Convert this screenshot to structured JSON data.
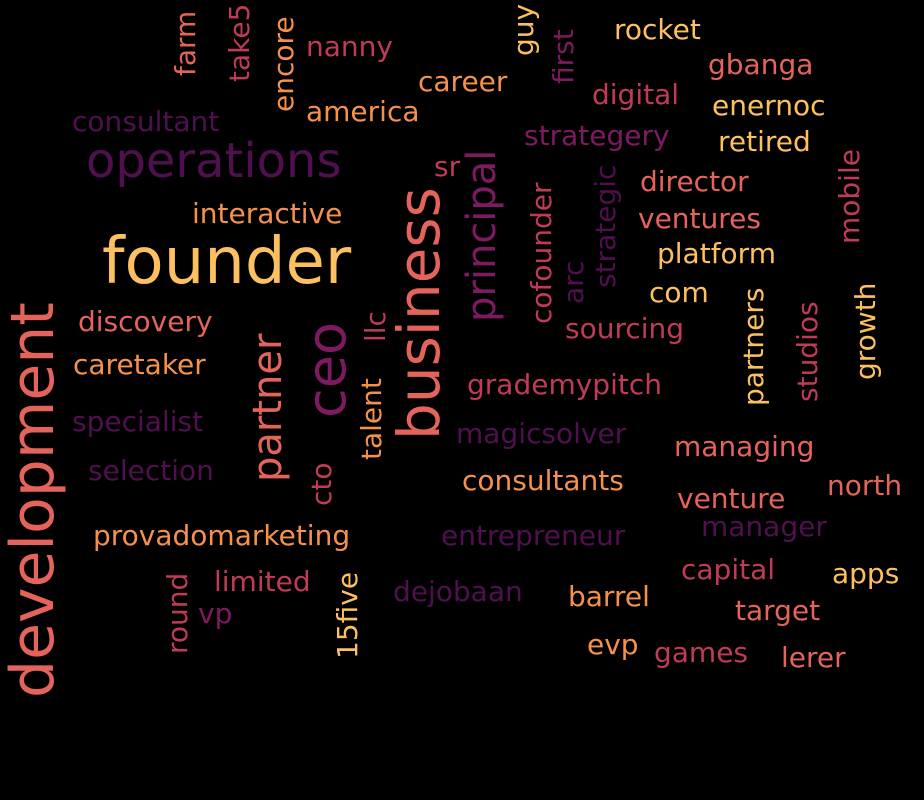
{
  "palette": {
    "yellow": "#fcc060",
    "orange": "#f6914c",
    "salmon": "#e4645c",
    "rose": "#c03b55",
    "purple": "#7d1a62",
    "dark_purple": "#50104f"
  },
  "words": {
    "development": "development",
    "founder": "founder",
    "business": "business",
    "ceo": "ceo",
    "operations": "operations",
    "partner": "partner",
    "principal": "principal",
    "consultant": "consultant",
    "america": "america",
    "career": "career",
    "nanny": "nanny",
    "farm": "farm",
    "take5": "take5",
    "encore": "encore",
    "guy": "guy",
    "first": "first",
    "rocket": "rocket",
    "gbanga": "gbanga",
    "digital": "digital",
    "enernoc": "enernoc",
    "strategery": "strategery",
    "retired": "retired",
    "sr": "sr",
    "cofounder": "cofounder",
    "arc": "arc",
    "strategic": "strategic",
    "director": "director",
    "mobile": "mobile",
    "ventures": "ventures",
    "interactive": "interactive",
    "platform": "platform",
    "com": "com",
    "discovery": "discovery",
    "llc": "llc",
    "sourcing": "sourcing",
    "partners": "partners",
    "studios": "studios",
    "growth": "growth",
    "caretaker": "caretaker",
    "grademypitch": "grademypitch",
    "talent": "talent",
    "specialist": "specialist",
    "magicsolver": "magicsolver",
    "managing": "managing",
    "selection": "selection",
    "cto": "cto",
    "consultants": "consultants",
    "north": "north",
    "venture": "venture",
    "manager": "manager",
    "provadomarketing": "provadomarketing",
    "entrepreneur": "entrepreneur",
    "capital": "capital",
    "apps": "apps",
    "round": "round",
    "limited": "limited",
    "vp": "vp",
    "15five": "15five",
    "dejobaan": "dejobaan",
    "barrel": "barrel",
    "target": "target",
    "evp": "evp",
    "games": "games",
    "lerer": "lerer"
  }
}
